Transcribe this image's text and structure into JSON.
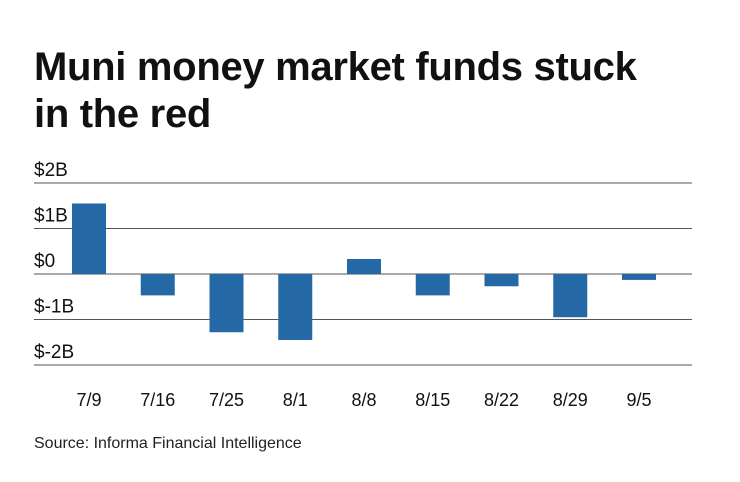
{
  "title_lines": [
    "Muni money market funds stuck",
    "in the red"
  ],
  "source": "Source: Informa Financial Intelligence",
  "colors": {
    "bar": "#2468a5",
    "grid": "#555555",
    "text": "#111111"
  },
  "chart_data": {
    "type": "bar",
    "categories": [
      "7/9",
      "7/16",
      "7/25",
      "8/1",
      "8/8",
      "8/15",
      "8/22",
      "8/29",
      "9/5"
    ],
    "values": [
      1.55,
      -0.47,
      -1.28,
      -1.45,
      0.33,
      -0.47,
      -0.27,
      -0.95,
      -0.13
    ],
    "unit": "B",
    "yticks": [
      "$2B",
      "$1B",
      "$0",
      "$-1B",
      "$-2B"
    ],
    "ytick_values": [
      2,
      1,
      0,
      -1,
      -2
    ],
    "ylim": [
      -2,
      2
    ],
    "grid": true,
    "legend": "none"
  }
}
